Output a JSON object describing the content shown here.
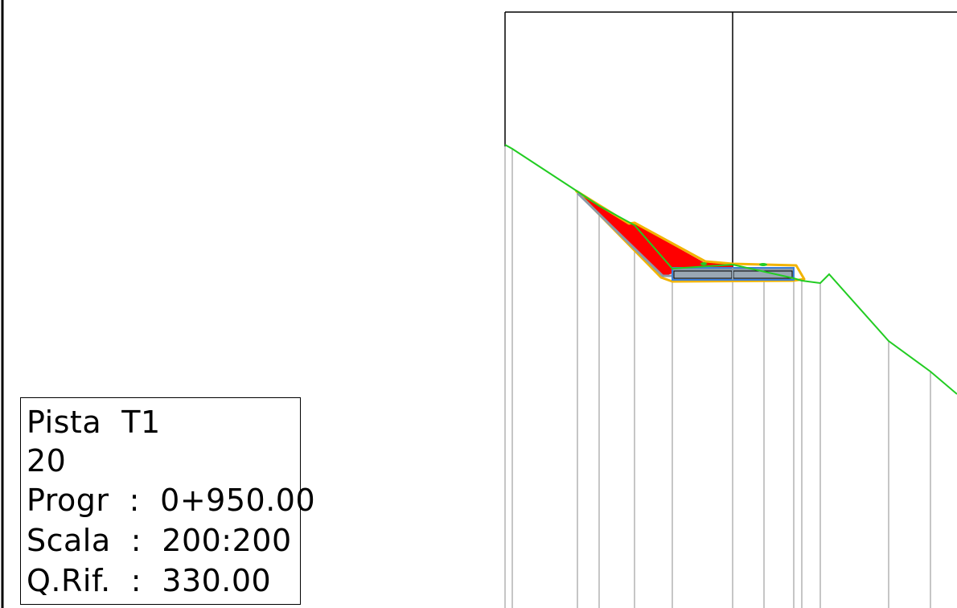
{
  "info_box": {
    "line1": "Pista  T1",
    "line2": "20",
    "line3": "Progr  :  0+950.00",
    "line4": "Scala  :  200:200",
    "line5": "Q.Rif.  :  330.00"
  },
  "colors": {
    "terrain": "#22cc22",
    "fill_area": "#ff0000",
    "slope_edge": "#f2b400",
    "road_body": "#8a9aa8",
    "road_outline": "#3d7fd9",
    "guide_lines": "#b4b4b4",
    "frame": "#000000"
  }
}
